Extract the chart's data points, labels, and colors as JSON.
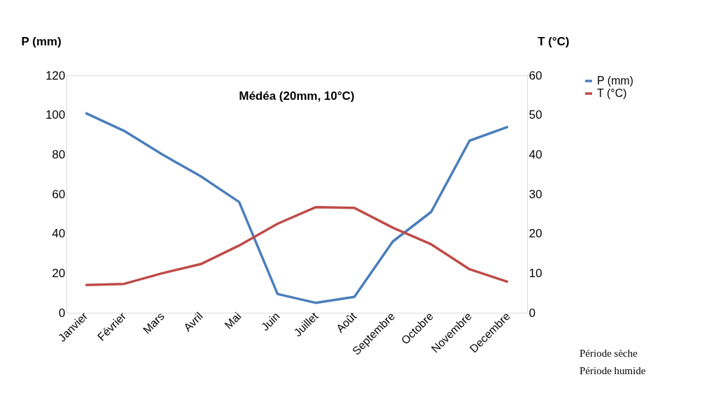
{
  "chart_data": {
    "type": "line",
    "title": "Médéa (20mm, 10°C)",
    "ylabel": "P (mm)",
    "y2label": "T (°C)",
    "categories": [
      "Janvier",
      "Février",
      "Mars",
      "Avril",
      "Mai",
      "Juin",
      "Juillet",
      "Août",
      "Septembre",
      "Octobre",
      "Novembre",
      "Decembre"
    ],
    "series": [
      {
        "name": "P (mm)",
        "color": "#4a7ebb",
        "values": [
          101,
          92,
          80,
          69,
          56,
          9.5,
          5,
          8,
          36,
          51,
          87,
          94
        ]
      },
      {
        "name": "T (°C)",
        "color": "#be4b48",
        "axis": "y2",
        "values": [
          7,
          7.3,
          10,
          12.3,
          17,
          22.5,
          26.7,
          26.5,
          21.5,
          17.3,
          11,
          7.8
        ]
      }
    ],
    "ylim": [
      0,
      120
    ],
    "yticks": [
      0,
      20,
      40,
      60,
      80,
      100,
      120
    ],
    "y2lim": [
      0,
      60
    ],
    "y2ticks": [
      0,
      10,
      20,
      30,
      40,
      50,
      60
    ],
    "grid": false,
    "legend": "right",
    "marker": "none",
    "line_style": "solid",
    "annotations": [
      "Période sèche",
      "Période humide"
    ]
  }
}
